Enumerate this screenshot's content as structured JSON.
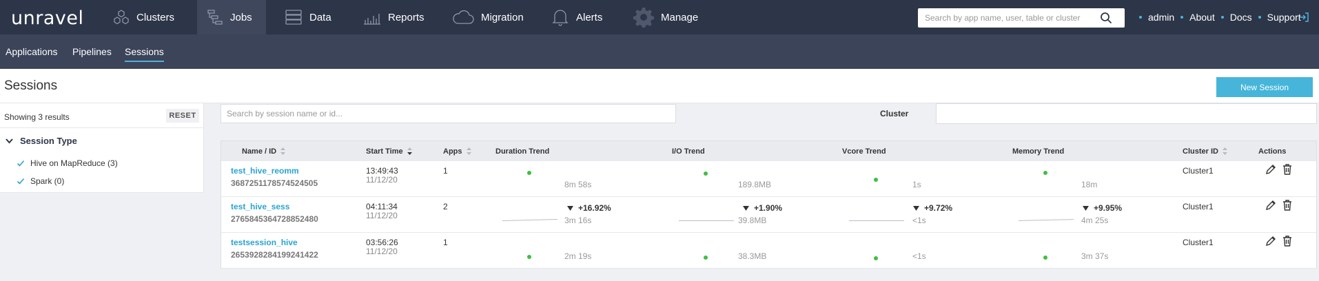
{
  "brand": "unravel",
  "nav": [
    {
      "label": "Clusters",
      "icon": "clusters-icon"
    },
    {
      "label": "Jobs",
      "icon": "jobs-icon"
    },
    {
      "label": "Data",
      "icon": "data-icon"
    },
    {
      "label": "Reports",
      "icon": "reports-icon"
    },
    {
      "label": "Migration",
      "icon": "cloud-icon"
    },
    {
      "label": "Alerts",
      "icon": "bell-icon"
    },
    {
      "label": "Manage",
      "icon": "gear-icon"
    }
  ],
  "search": {
    "placeholder": "Search by app name, user, table or cluster"
  },
  "top_links": {
    "user": "admin",
    "about": "About",
    "docs": "Docs",
    "support": "Support"
  },
  "subtabs": [
    "Applications",
    "Pipelines",
    "Sessions"
  ],
  "page": {
    "title": "Sessions",
    "new_button": "New Session"
  },
  "sidebar": {
    "showing": "Showing 3 results",
    "reset": "RESET",
    "facet_title": "Session Type",
    "facets": [
      {
        "label": "Hive on MapReduce (3)",
        "checked": true
      },
      {
        "label": "Spark (0)",
        "checked": true
      }
    ]
  },
  "filters": {
    "search_placeholder": "Search by session name or id...",
    "cluster_label": "Cluster"
  },
  "table": {
    "headers": {
      "name": "Name / ID",
      "start": "Start Time",
      "apps": "Apps",
      "duration": "Duration Trend",
      "io": "I/O Trend",
      "vcore": "Vcore Trend",
      "memory": "Memory Trend",
      "cluster": "Cluster ID",
      "actions": "Actions"
    },
    "rows": [
      {
        "name": "test_hive_reomm",
        "id": "3687251178574524505",
        "time": "13:49:43",
        "date": "11/12/20",
        "apps": "1",
        "duration": {
          "pct": "",
          "value": "8m 58s"
        },
        "io": {
          "pct": "",
          "value": "189.8MB"
        },
        "vcore": {
          "pct": "",
          "value": "1s"
        },
        "memory": {
          "pct": "",
          "value": "18m"
        },
        "cluster": "Cluster1"
      },
      {
        "name": "test_hive_sess",
        "id": "2765845364728852480",
        "time": "04:11:34",
        "date": "11/12/20",
        "apps": "2",
        "duration": {
          "pct": "+16.92%",
          "value": "3m 16s"
        },
        "io": {
          "pct": "+1.90%",
          "value": "39.8MB"
        },
        "vcore": {
          "pct": "+9.72%",
          "value": "<1s"
        },
        "memory": {
          "pct": "+9.95%",
          "value": "4m 25s"
        },
        "cluster": "Cluster1"
      },
      {
        "name": "testsession_hive",
        "id": "2653928284199241422",
        "time": "03:56:26",
        "date": "11/12/20",
        "apps": "1",
        "duration": {
          "pct": "",
          "value": "2m 19s"
        },
        "io": {
          "pct": "",
          "value": "38.3MB"
        },
        "vcore": {
          "pct": "",
          "value": "<1s"
        },
        "memory": {
          "pct": "",
          "value": "3m 37s"
        },
        "cluster": "Cluster1"
      }
    ]
  },
  "colors": {
    "topbar": "#2d3548",
    "subbar": "#3b4459",
    "accent": "#46b5d9",
    "link": "#2ba3cf",
    "trend_dot": "#3fbf3f"
  }
}
